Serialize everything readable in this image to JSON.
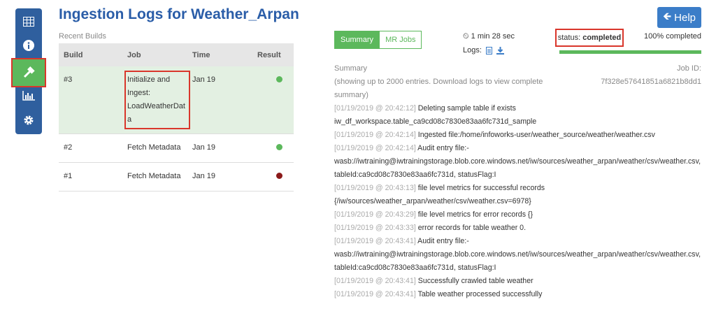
{
  "header": {
    "title": "Ingestion Logs for Weather_Arpan",
    "help_button": "Help"
  },
  "builds": {
    "caption": "Recent Builds",
    "columns": [
      "Build",
      "Job",
      "Time",
      "Result"
    ],
    "rows": [
      {
        "build": "#3",
        "job": "Initialize and Ingest: LoadWeatherData",
        "time": "Jan 19",
        "result_color": "#5cb85c"
      },
      {
        "build": "#2",
        "job": "Fetch Metadata",
        "time": "Jan 19",
        "result_color": "#5cb85c"
      },
      {
        "build": "#1",
        "job": "Fetch Metadata",
        "time": "Jan 19",
        "result_color": "#8b1a1a"
      }
    ]
  },
  "summary": {
    "tabs": [
      "Summary",
      "MR Jobs"
    ],
    "duration": "1 min 28 sec",
    "logs_label": "Logs:",
    "status_label": "status:",
    "status": "completed",
    "progress": {
      "value": 100,
      "label": "100% completed"
    }
  },
  "log": {
    "heading": "Summary",
    "job_id_label": "Job ID:",
    "job_id": "7f328e57641851a6821b8dd1",
    "note": "(showing up to 2000 entries. Download logs to view complete summary)",
    "entries": [
      {
        "time": "[01/19/2019 @ 20:42:12]",
        "message": "Deleting sample table if exists iw_df_workspace.table_ca9cd08c7830e83aa6fc731d_sample"
      },
      {
        "time": "[01/19/2019 @ 20:42:14]",
        "message": "Ingested file:/home/infoworks-user/weather_source/weather/weather.csv"
      },
      {
        "time": "[01/19/2019 @ 20:42:14]",
        "message": "Audit entry file:-wasb://iwtraining@iwtrainingstorage.blob.core.windows.net/iw/sources/weather_arpan/weather/csv/weather.csv, tableId:ca9cd08c7830e83aa6fc731d, statusFlag:I"
      },
      {
        "time": "[01/19/2019 @ 20:43:13]",
        "message": "file level metrics for successful records {/iw/sources/weather_arpan/weather/csv/weather.csv=6978}"
      },
      {
        "time": "[01/19/2019 @ 20:43:29]",
        "message": "file level metrics for error records {}"
      },
      {
        "time": "[01/19/2019 @ 20:43:33]",
        "message": "error records for table weather 0."
      },
      {
        "time": "[01/19/2019 @ 20:43:41]",
        "message": "Audit entry file:-wasb://iwtraining@iwtrainingstorage.blob.core.windows.net/iw/sources/weather_arpan/weather/csv/weather.csv, tableId:ca9cd08c7830e83aa6fc731d, statusFlag:I"
      },
      {
        "time": "[01/19/2019 @ 20:43:41]",
        "message": "Successfully crawled table weather"
      },
      {
        "time": "[01/19/2019 @ 20:43:41]",
        "message": "Table weather processed successfully"
      }
    ]
  }
}
